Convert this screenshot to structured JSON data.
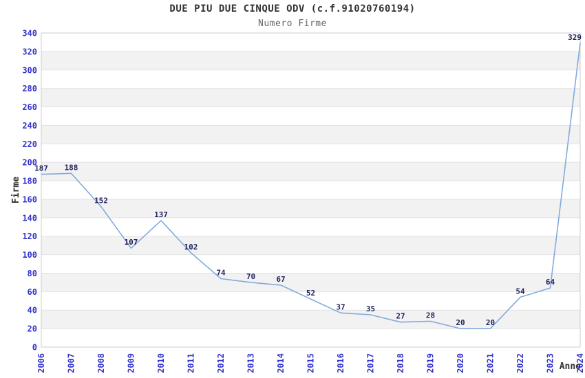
{
  "header": {
    "title": "DUE PIU DUE CINQUE ODV (c.f.91020760194)",
    "subtitle": "Numero Firme"
  },
  "chart_data": {
    "type": "line",
    "title": "DUE PIU DUE CINQUE ODV (c.f.91020760194)",
    "subtitle": "Numero Firme",
    "xlabel": "Anno",
    "ylabel": "Firme",
    "categories": [
      "2006",
      "2007",
      "2008",
      "2009",
      "2010",
      "2011",
      "2012",
      "2013",
      "2014",
      "2015",
      "2016",
      "2017",
      "2018",
      "2019",
      "2020",
      "2021",
      "2022",
      "2023",
      "2024"
    ],
    "series": [
      {
        "name": "Numero Firme",
        "values": [
          187,
          188,
          152,
          107,
          137,
          102,
          74,
          70,
          67,
          52,
          37,
          35,
          27,
          28,
          20,
          20,
          54,
          64,
          329
        ]
      }
    ],
    "ylim": [
      0,
      340
    ],
    "ytick_step": 20,
    "yticks": [
      0,
      20,
      40,
      60,
      80,
      100,
      120,
      140,
      160,
      180,
      200,
      220,
      240,
      260,
      280,
      300,
      320,
      340
    ],
    "grid": true,
    "banded_background": true,
    "legend_position": "none",
    "data_labels_shown": true,
    "colors": {
      "line": "#82aade",
      "tick_label": "#3333cc",
      "data_label": "#23235f",
      "axis_title": "#333333",
      "title": "#333333",
      "subtitle": "#666666",
      "band_light": "#ffffff",
      "band_dark": "#f2f2f2",
      "gridline": "#e2e2e2",
      "plot_border": "#cccccc",
      "background": "#ffffff"
    }
  }
}
